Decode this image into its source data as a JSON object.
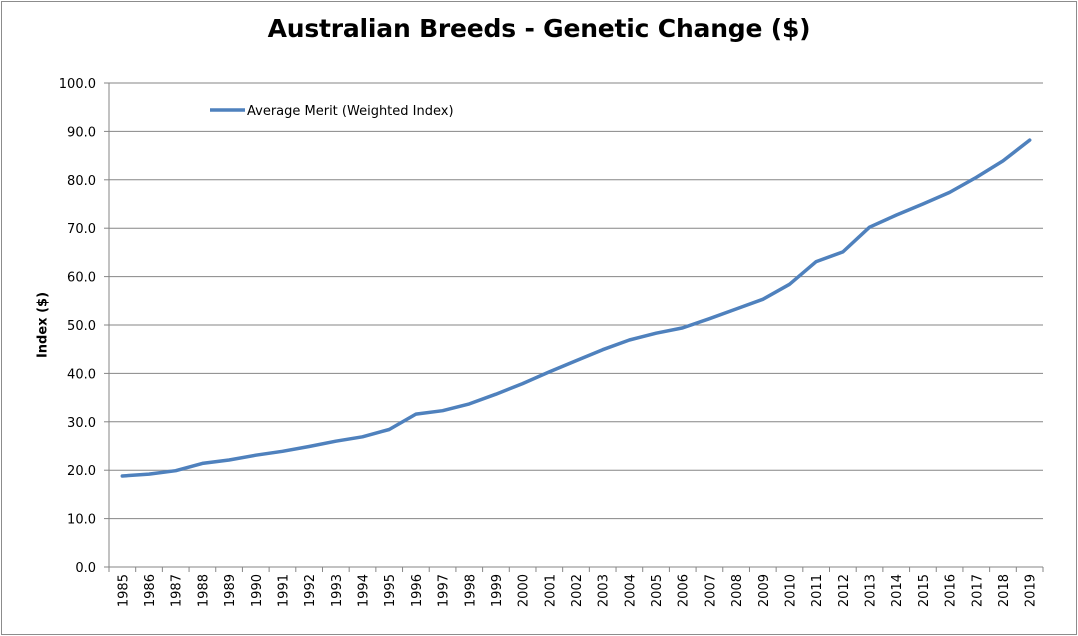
{
  "chart_data": {
    "type": "line",
    "title": "Australian Breeds - Genetic Change ($)",
    "xlabel": "",
    "ylabel": "Index ($)",
    "ylim": [
      0,
      100
    ],
    "yticks": [
      "0.0",
      "10.0",
      "20.0",
      "30.0",
      "40.0",
      "50.0",
      "60.0",
      "70.0",
      "80.0",
      "90.0",
      "100.0"
    ],
    "grid": true,
    "legend_position": "top-left",
    "x": [
      "1985",
      "1986",
      "1987",
      "1988",
      "1989",
      "1990",
      "1991",
      "1992",
      "1993",
      "1994",
      "1995",
      "1996",
      "1997",
      "1998",
      "1999",
      "2000",
      "2001",
      "2002",
      "2003",
      "2004",
      "2005",
      "2006",
      "2007",
      "2008",
      "2009",
      "2010",
      "2011",
      "2012",
      "2013",
      "2014",
      "2015",
      "2016",
      "2017",
      "2018",
      "2019"
    ],
    "series": [
      {
        "name": "Average Merit (Weighted Index)",
        "color": "#4f81bd",
        "values": [
          18.8,
          19.2,
          19.9,
          21.4,
          22.1,
          23.1,
          23.9,
          24.9,
          26.0,
          26.9,
          28.4,
          31.6,
          32.3,
          33.7,
          35.7,
          37.9,
          40.3,
          42.6,
          44.9,
          46.9,
          48.3,
          49.4,
          51.3,
          53.3,
          55.3,
          58.4,
          63.1,
          65.1,
          70.2,
          72.7,
          75.0,
          77.4,
          80.5,
          83.9,
          88.2
        ]
      }
    ]
  }
}
